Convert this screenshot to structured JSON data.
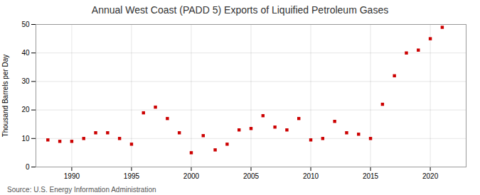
{
  "chart_data": {
    "type": "scatter",
    "title": "Annual West Coast (PADD 5) Exports of Liquified Petroleum Gases",
    "ylabel": "Thousand Barrels per Day",
    "source": "Source: U.S. Energy Information Administration",
    "x": [
      1988,
      1989,
      1990,
      1991,
      1992,
      1993,
      1994,
      1995,
      1996,
      1997,
      1998,
      1999,
      2000,
      2001,
      2002,
      2003,
      2004,
      2005,
      2006,
      2007,
      2008,
      2009,
      2010,
      2011,
      2012,
      2013,
      2014,
      2015,
      2016,
      2017,
      2018,
      2019,
      2020,
      2021
    ],
    "values": [
      9.5,
      9.0,
      9.0,
      10.0,
      12.0,
      12.0,
      10.0,
      8.0,
      19.0,
      21.0,
      17.0,
      12.0,
      5.0,
      11.0,
      6.0,
      8.0,
      13.0,
      13.5,
      18.0,
      14.0,
      13.0,
      17.0,
      9.5,
      10.0,
      16.0,
      12.0,
      11.5,
      10.0,
      22.0,
      32.0,
      40.0,
      41.0,
      45.0,
      49.0
    ],
    "color": "#cc0000",
    "marker": "square",
    "xlim": [
      1987,
      2023
    ],
    "xticks": [
      1990,
      1995,
      2000,
      2005,
      2010,
      2015,
      2020
    ],
    "ylim": [
      0,
      50
    ],
    "yticks": [
      0,
      10,
      20,
      30,
      40,
      50
    ],
    "grid": true
  }
}
